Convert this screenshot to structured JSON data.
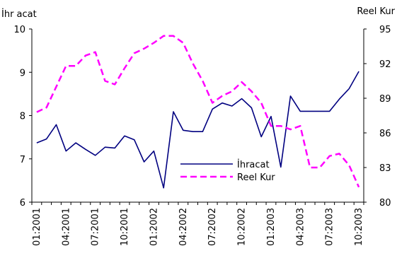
{
  "chart_data": {
    "type": "line",
    "y_left_label": "İhr acat",
    "y_right_label": "Reel Kur",
    "y_left_lim": [
      6,
      10
    ],
    "y_right_lim": [
      80,
      95
    ],
    "y_left_ticks": [
      "6",
      "7",
      "8",
      "9",
      "10"
    ],
    "y_right_ticks": [
      "80",
      "83",
      "86",
      "89",
      "92",
      "95"
    ],
    "x_tick_labels": [
      "01:2001",
      "04:2001",
      "07:2001",
      "10:2001",
      "01:2002",
      "04:2002",
      "07:2002",
      "10:2002",
      "01:2003",
      "04:2003",
      "07:2003",
      "10:2003"
    ],
    "legend_position": "center-right",
    "series": [
      {
        "name": "İhracat",
        "axis": "left",
        "color": "#000080",
        "style": "solid",
        "values": [
          7.37,
          7.46,
          7.79,
          7.18,
          7.37,
          7.22,
          7.08,
          7.27,
          7.25,
          7.53,
          7.44,
          6.93,
          7.18,
          6.33,
          8.09,
          7.66,
          7.63,
          7.63,
          8.15,
          8.29,
          8.22,
          8.39,
          8.18,
          7.51,
          7.98,
          6.81,
          8.45,
          8.1,
          8.1,
          8.1,
          8.1,
          8.38,
          8.62,
          9.02
        ]
      },
      {
        "name": "Reel Kur",
        "axis": "right",
        "color": "#ff00ff",
        "style": "dashed",
        "values": [
          87.8,
          88.2,
          90.0,
          91.8,
          91.8,
          92.7,
          93.0,
          90.5,
          90.2,
          91.6,
          92.9,
          93.3,
          93.8,
          94.4,
          94.4,
          93.8,
          92.0,
          90.5,
          88.6,
          89.2,
          89.6,
          90.4,
          89.6,
          88.6,
          86.6,
          86.6,
          86.3,
          86.6,
          83.0,
          83.0,
          84.0,
          84.2,
          83.2,
          81.3
        ]
      }
    ]
  }
}
